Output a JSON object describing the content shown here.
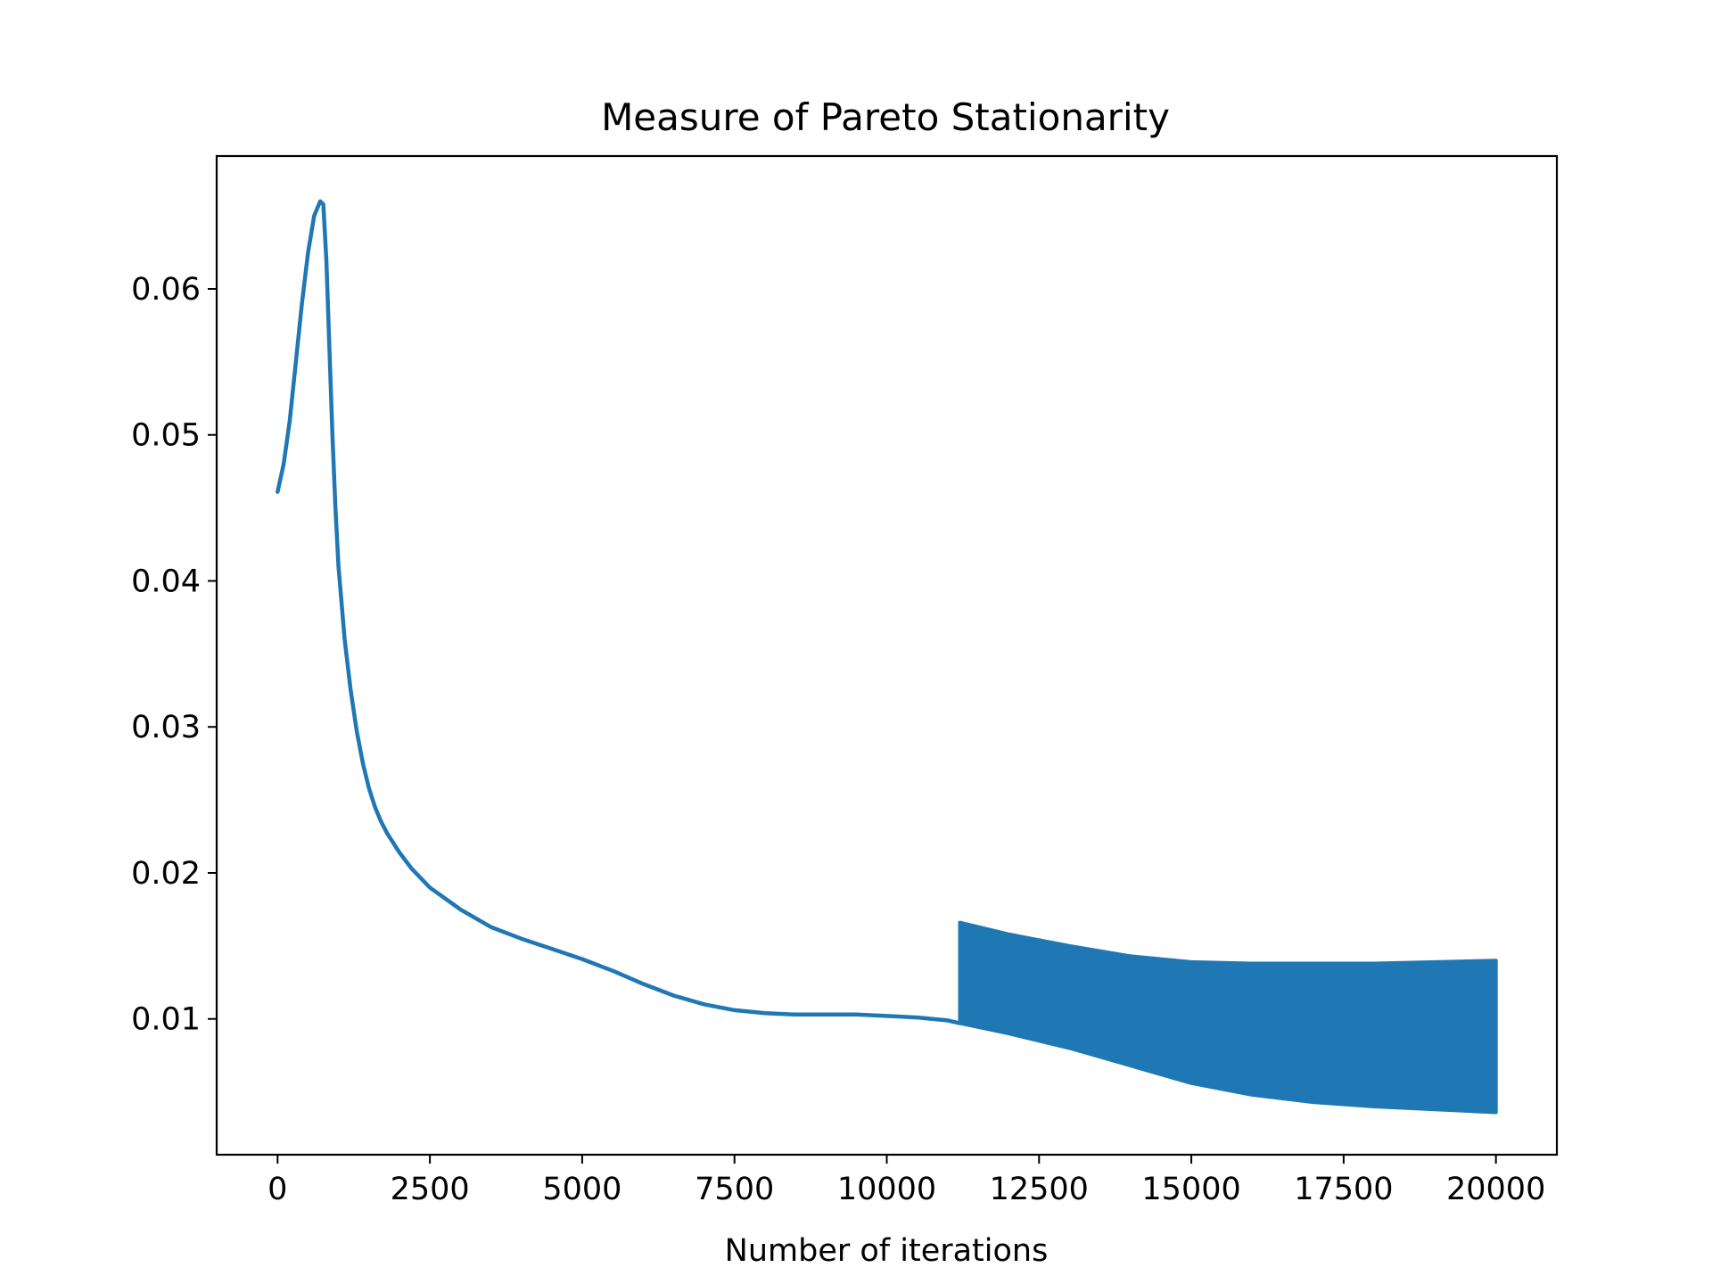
{
  "chart_data": {
    "type": "line",
    "title": "Measure of Pareto Stationarity",
    "xlabel": "Number of iterations",
    "ylabel": "",
    "xlim": [
      -1000,
      21000
    ],
    "ylim": [
      0.0007,
      0.0691
    ],
    "xticks": [
      0,
      2500,
      5000,
      7500,
      10000,
      12500,
      15000,
      17500,
      20000
    ],
    "xtick_labels": [
      "0",
      "2500",
      "5000",
      "7500",
      "10000",
      "12500",
      "15000",
      "17500",
      "20000"
    ],
    "yticks": [
      0.01,
      0.02,
      0.03,
      0.04,
      0.05,
      0.06
    ],
    "ytick_labels": [
      "0.01",
      "0.02",
      "0.03",
      "0.04",
      "0.05",
      "0.06"
    ],
    "grid": false,
    "legend": "none",
    "series_color": "#1f77b4",
    "series": [
      {
        "x": [
          0,
          100,
          200,
          300,
          400,
          500,
          600,
          700,
          750,
          800,
          850,
          900,
          950,
          1000,
          1100,
          1200,
          1300,
          1400,
          1500,
          1600,
          1700,
          1800,
          2000,
          2200,
          2500,
          3000,
          3500,
          4000,
          4500,
          5000,
          5500,
          6000,
          6500,
          7000,
          7500,
          8000,
          8500,
          9000,
          9500,
          10000,
          10500,
          11000,
          11200
        ],
        "y": [
          0.0461,
          0.048,
          0.051,
          0.055,
          0.059,
          0.0625,
          0.065,
          0.066,
          0.0658,
          0.062,
          0.056,
          0.05,
          0.045,
          0.041,
          0.036,
          0.0325,
          0.0297,
          0.0275,
          0.0258,
          0.0245,
          0.0235,
          0.0227,
          0.0214,
          0.0203,
          0.019,
          0.0175,
          0.0163,
          0.0155,
          0.0148,
          0.0141,
          0.0133,
          0.0124,
          0.0116,
          0.011,
          0.0106,
          0.0104,
          0.0103,
          0.0103,
          0.0103,
          0.0102,
          0.0101,
          0.0099,
          0.0097
        ]
      }
    ],
    "oscillation_band": {
      "x": [
        11200,
        12000,
        13000,
        14000,
        15000,
        16000,
        17000,
        18000,
        19000,
        20000
      ],
      "upper": [
        0.0166,
        0.0158,
        0.015,
        0.0143,
        0.0139,
        0.0138,
        0.0138,
        0.0138,
        0.0139,
        0.014
      ],
      "lower": [
        0.0097,
        0.009,
        0.008,
        0.0068,
        0.0056,
        0.0048,
        0.0043,
        0.004,
        0.0038,
        0.0036
      ]
    }
  }
}
